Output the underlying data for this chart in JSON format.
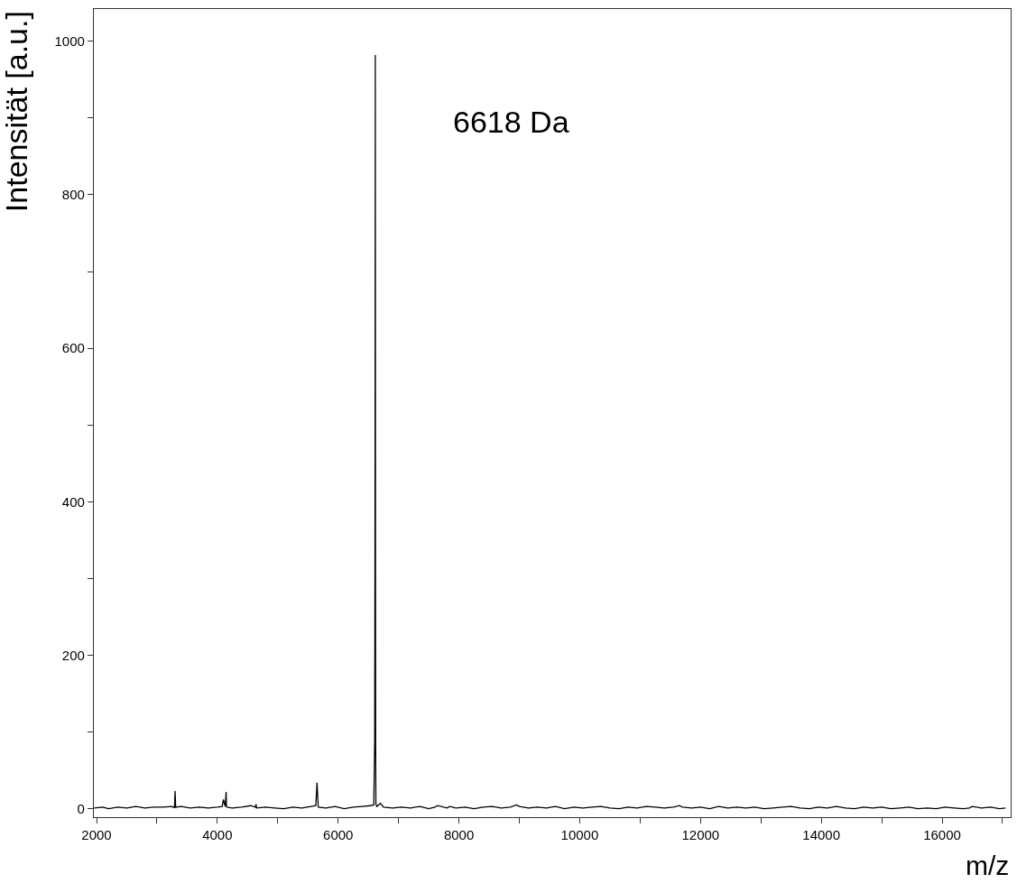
{
  "chart_data": {
    "type": "line",
    "xlabel": "m/z",
    "ylabel": "Intensität [a.u.]",
    "annotations": [
      "6618 Da"
    ],
    "x": [
      1960,
      2100,
      2200,
      2350,
      2500,
      2650,
      2800,
      2950,
      3100,
      3250,
      3290,
      3300,
      3310,
      3400,
      3550,
      3700,
      3850,
      4000,
      4080,
      4100,
      4120,
      4130,
      4145,
      4150,
      4160,
      4250,
      4400,
      4550,
      4630,
      4640,
      4650,
      4800,
      4950,
      5100,
      5250,
      5400,
      5550,
      5630,
      5650,
      5670,
      5800,
      5950,
      6100,
      6250,
      6400,
      6530,
      6590,
      6605,
      6610,
      6615,
      6618,
      6621,
      6625,
      6640,
      6700,
      6750,
      6900,
      7050,
      7200,
      7350,
      7500,
      7600,
      7650,
      7800,
      7850,
      7950,
      8100,
      8250,
      8400,
      8550,
      8700,
      8850,
      8950,
      9000,
      9150,
      9300,
      9450,
      9600,
      9750,
      9900,
      10050,
      10200,
      10350,
      10500,
      10650,
      10800,
      10950,
      11100,
      11250,
      11400,
      11550,
      11650,
      11700,
      11850,
      12000,
      12150,
      12300,
      12450,
      12600,
      12750,
      12900,
      13050,
      13200,
      13350,
      13500,
      13650,
      13800,
      13950,
      14100,
      14250,
      14400,
      14550,
      14700,
      14850,
      15000,
      15150,
      15300,
      15450,
      15600,
      15750,
      15900,
      16050,
      16200,
      16350,
      16450,
      16500,
      16650,
      16800,
      16950,
      17050
    ],
    "series": [
      {
        "color": "#000000",
        "values": [
          1,
          2,
          0,
          2,
          1,
          3,
          1,
          2,
          2,
          3,
          1,
          23,
          2,
          3,
          1,
          2,
          1,
          2,
          3,
          12,
          6,
          3,
          22,
          3,
          2,
          1,
          2,
          4,
          2,
          6,
          1,
          2,
          1,
          0,
          2,
          1,
          3,
          4,
          34,
          2,
          1,
          3,
          0,
          2,
          3,
          4,
          5,
          90,
          348,
          982,
          350,
          80,
          6,
          3,
          7,
          2,
          1,
          2,
          1,
          3,
          0,
          2,
          4,
          1,
          3,
          1,
          2,
          0,
          2,
          3,
          1,
          2,
          5,
          3,
          1,
          2,
          1,
          3,
          0,
          2,
          1,
          2,
          3,
          1,
          0,
          2,
          1,
          3,
          2,
          1,
          2,
          4,
          2,
          1,
          2,
          0,
          3,
          1,
          2,
          1,
          2,
          0,
          1,
          2,
          3,
          1,
          0,
          2,
          1,
          3,
          1,
          0,
          2,
          1,
          2,
          0,
          1,
          2,
          0,
          1,
          0,
          2,
          1,
          0,
          1,
          3,
          1,
          2,
          0,
          1
        ]
      }
    ],
    "xlim": [
      1955,
      17135
    ],
    "ylim": [
      -11,
      1042
    ],
    "xticks": [
      2000,
      {
        "value": 3000,
        "label": null
      },
      4000,
      {
        "value": 5000,
        "label": null
      },
      6000,
      {
        "value": 7000,
        "label": null
      },
      8000,
      {
        "value": 9000,
        "label": null
      },
      10000,
      {
        "value": 11000,
        "label": null
      },
      12000,
      {
        "value": 13000,
        "label": null
      },
      14000,
      {
        "value": 15000,
        "label": null
      },
      16000,
      {
        "value": 17000,
        "label": null
      }
    ],
    "yticks": [
      0,
      {
        "value": 100,
        "label": null
      },
      200,
      {
        "value": 300,
        "label": null
      },
      400,
      {
        "value": 500,
        "label": null
      },
      600,
      {
        "value": 700,
        "label": null
      },
      800,
      {
        "value": 900,
        "label": null
      },
      1000
    ],
    "marker": "none",
    "line_style": "solid"
  }
}
